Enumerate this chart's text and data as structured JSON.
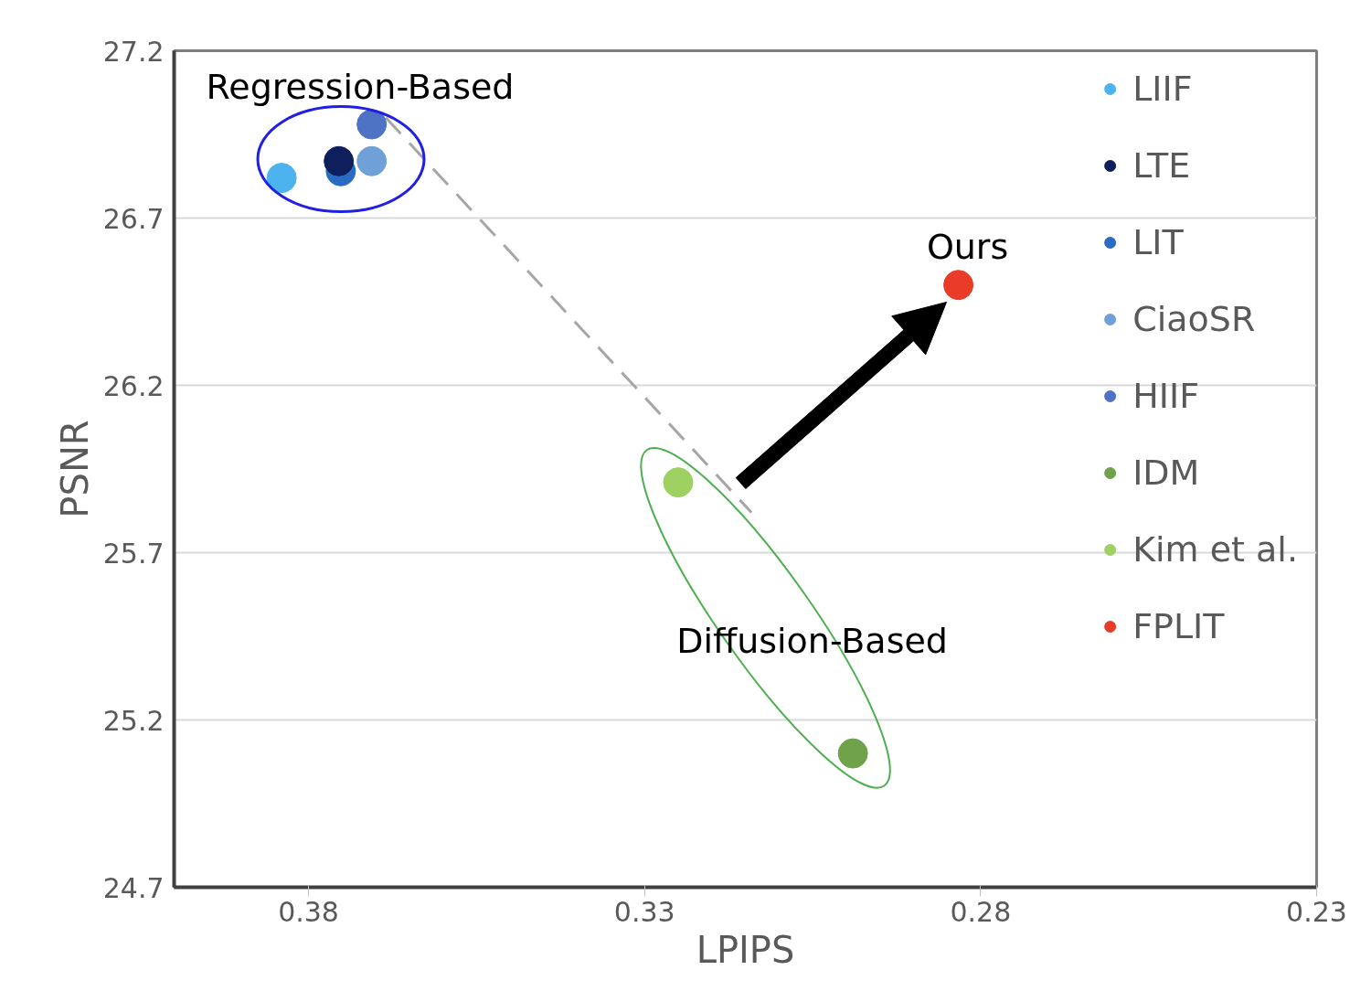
{
  "chart_data": {
    "type": "scatter",
    "xlabel": "LPIPS",
    "ylabel": "PSNR",
    "xlim": [
      0.4,
      0.23
    ],
    "xticks": [
      0.38,
      0.33,
      0.28,
      0.23
    ],
    "ylim": [
      24.7,
      27.2
    ],
    "yticks": [
      24.7,
      25.2,
      25.7,
      26.2,
      26.7,
      27.2
    ],
    "grid": "y",
    "legend": "top right",
    "marker": "circle",
    "series": [
      {
        "name": "LIIF",
        "color": "#4db3ef",
        "x": [
          0.384
        ],
        "values": [
          26.82
        ]
      },
      {
        "name": "LTE",
        "color": "#0d1f5c",
        "x": [
          0.3755
        ],
        "values": [
          26.87
        ]
      },
      {
        "name": "LIT",
        "color": "#2a6cc4",
        "x": [
          0.3752
        ],
        "values": [
          26.84
        ]
      },
      {
        "name": "CiaoSR",
        "color": "#6fa0d8",
        "x": [
          0.3706
        ],
        "values": [
          26.87
        ]
      },
      {
        "name": "HIIF",
        "color": "#4f73c4",
        "x": [
          0.3706
        ],
        "values": [
          26.98
        ]
      },
      {
        "name": "IDM",
        "color": "#6fa24a",
        "x": [
          0.299
        ],
        "values": [
          25.1
        ]
      },
      {
        "name": "Kim et al.",
        "color": "#9fd162",
        "x": [
          0.325
        ],
        "values": [
          25.91
        ]
      },
      {
        "name": "FPLIT",
        "color": "#ea3a28",
        "x": [
          0.2833
        ],
        "values": [
          26.5
        ]
      },
      {
        "type": "line",
        "color": "#a6a6a6",
        "line_style": "dashed",
        "marker": "none",
        "x": [
          0.3685,
          0.3141
        ],
        "values": [
          27.0,
          25.82
        ]
      }
    ],
    "annotations": [
      "Regression-Based",
      "Ours",
      "Diffusion-Based"
    ]
  }
}
